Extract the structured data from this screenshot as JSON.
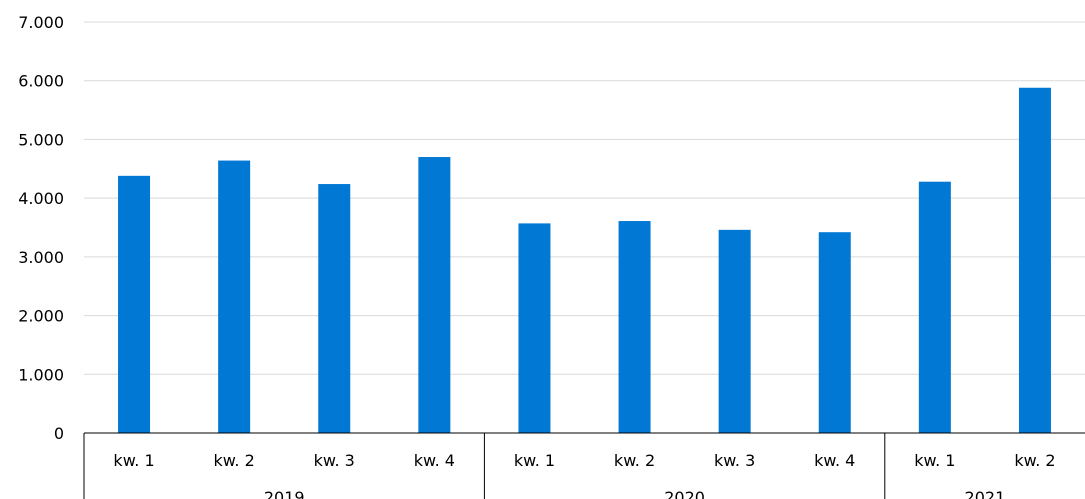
{
  "chart_data": {
    "type": "bar",
    "title": "",
    "xlabel": "",
    "ylabel": "",
    "ylim": [
      0,
      7000
    ],
    "yticks": [
      "0",
      "1.000",
      "2.000",
      "3.000",
      "4.000",
      "5.000",
      "6.000",
      "7.000"
    ],
    "ytick_values": [
      0,
      1000,
      2000,
      3000,
      4000,
      5000,
      6000,
      7000
    ],
    "grid": true,
    "legend": "none",
    "bar_color": "#0078d4",
    "groups": [
      {
        "label": "2019",
        "count": 4
      },
      {
        "label": "2020",
        "count": 4
      },
      {
        "label": "2021",
        "count": 2
      }
    ],
    "categories": [
      "kw. 1",
      "kw. 2",
      "kw. 3",
      "kw. 4",
      "kw. 1",
      "kw. 2",
      "kw. 3",
      "kw. 4",
      "kw. 1",
      "kw. 2"
    ],
    "values": [
      4380,
      4640,
      4240,
      4700,
      3570,
      3610,
      3460,
      3420,
      4280,
      5880
    ]
  }
}
